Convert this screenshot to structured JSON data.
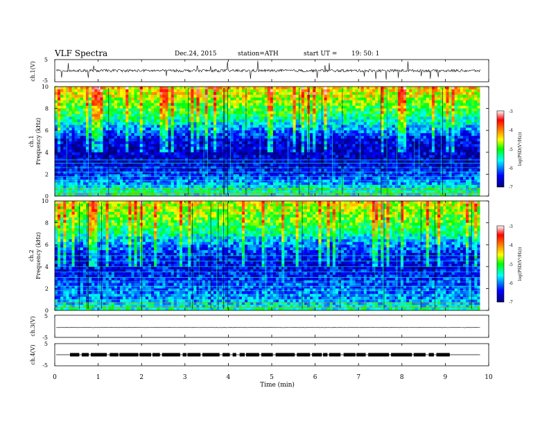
{
  "header": {
    "title": "VLF  Spectra",
    "date": "Dec.24, 2015",
    "station": "station=ATH",
    "start_label": "start  UT =",
    "start_time": "19: 50: 1"
  },
  "panels": {
    "ch1_wave": {
      "ylabel": "ch.1(V)",
      "ticks": [
        "5",
        "-5"
      ]
    },
    "ch1_spec": {
      "ylabel": "ch.1",
      "ylabel2": "Frequency  (kHz)",
      "ticks": [
        "10",
        "8",
        "6",
        "4",
        "2",
        "0"
      ],
      "cbar_label": "log(PSD(V²/Hz))",
      "cbar_ticks": [
        "-3",
        "-4",
        "-5",
        "-6",
        "-7"
      ]
    },
    "ch2_spec": {
      "ylabel": "ch.2",
      "ylabel2": "Frequency  (kHz)",
      "ticks": [
        "10",
        "8",
        "6",
        "4",
        "2",
        "0"
      ],
      "cbar_label": "log(PSD(V²/Hz))",
      "cbar_ticks": [
        "-3",
        "-4",
        "-5",
        "-6",
        "-7"
      ]
    },
    "ch3_wave": {
      "ylabel": "ch.3(V)",
      "ticks": [
        "5",
        "-5"
      ]
    },
    "ch4_wave": {
      "ylabel": "ch.4(V)",
      "ticks": [
        "5",
        "-5"
      ]
    }
  },
  "xaxis": {
    "label": "Time  (min)",
    "ticks": [
      "0",
      "1",
      "2",
      "3",
      "4",
      "5",
      "6",
      "7",
      "8",
      "9",
      "10"
    ]
  },
  "chart_data": {
    "type": "heatmap",
    "title": "VLF  Spectra",
    "xlabel": "Time  (min)",
    "ylabel": "Frequency  (kHz)",
    "xlim": [
      0,
      10
    ],
    "data_end_min": 9.8,
    "ylim": [
      0,
      10
    ],
    "waveform_ylim": [
      -5,
      5
    ],
    "colorbar": {
      "label": "log(PSD(V²/Hz))",
      "range": [
        -7,
        -3
      ],
      "colors": [
        "#000080",
        "#0000ff",
        "#00ffff",
        "#00ff00",
        "#ffff00",
        "#ff8000",
        "#ff0000",
        "#ffffff"
      ]
    },
    "series": [
      {
        "name": "ch.1",
        "band_kHz_log_psd": [
          {
            "f": 0.0,
            "v": -5.5
          },
          {
            "f": 0.5,
            "v": -5.3
          },
          {
            "f": 1.0,
            "v": -5.8
          },
          {
            "f": 2.0,
            "v": -6.3
          },
          {
            "f": 3.0,
            "v": -6.6
          },
          {
            "f": 4.0,
            "v": -6.7
          },
          {
            "f": 5.0,
            "v": -6.6
          },
          {
            "f": 6.0,
            "v": -6.0
          },
          {
            "f": 7.0,
            "v": -5.4
          },
          {
            "f": 8.0,
            "v": -5.0
          },
          {
            "f": 9.0,
            "v": -4.6
          },
          {
            "f": 10.0,
            "v": -4.3
          }
        ],
        "lines_kHz": [
          0.1,
          0.3,
          0.6,
          1.0,
          1.4,
          1.8,
          2.2,
          2.6,
          3.0,
          3.3
        ]
      },
      {
        "name": "ch.2",
        "band_kHz_log_psd": [
          {
            "f": 0.0,
            "v": -5.3
          },
          {
            "f": 0.5,
            "v": -5.6
          },
          {
            "f": 1.0,
            "v": -5.9
          },
          {
            "f": 2.0,
            "v": -6.1
          },
          {
            "f": 3.0,
            "v": -6.3
          },
          {
            "f": 4.0,
            "v": -6.5
          },
          {
            "f": 5.0,
            "v": -6.4
          },
          {
            "f": 6.0,
            "v": -6.0
          },
          {
            "f": 7.0,
            "v": -5.4
          },
          {
            "f": 8.0,
            "v": -5.0
          },
          {
            "f": 9.0,
            "v": -4.7
          },
          {
            "f": 10.0,
            "v": -4.5
          }
        ],
        "lines_kHz": [
          0.3,
          0.7,
          1.0,
          1.4,
          1.8,
          2.2,
          2.6,
          3.0,
          3.5,
          4.0,
          4.5,
          5.0
        ]
      }
    ],
    "waveforms": [
      {
        "name": "ch.1(V)",
        "baseline": 0,
        "spread": 0.6
      },
      {
        "name": "ch.3(V)",
        "baseline": -0.5,
        "spread": 0.1
      },
      {
        "name": "ch.4(V)",
        "baseline": 0,
        "spread": 0.5
      }
    ]
  }
}
